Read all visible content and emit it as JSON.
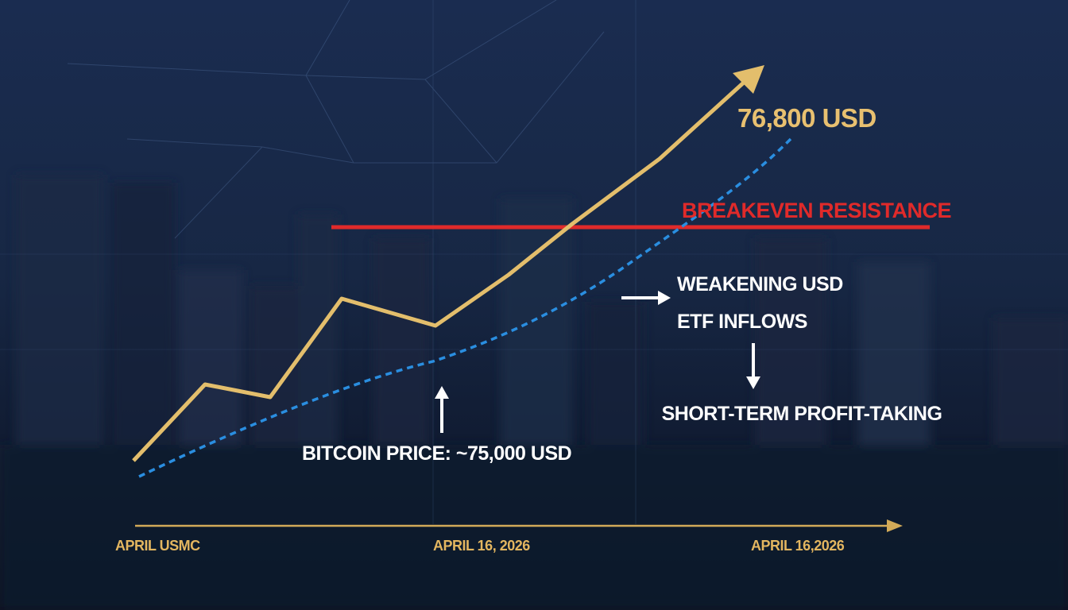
{
  "annotations": {
    "target": "76,800 USD",
    "resistance": "BREAKEVEN RESISTANCE",
    "driver_1": "WEAKENING USD",
    "driver_2": "ETF INFLOWS",
    "outcome": "SHORT-TERM PROFIT-TAKING",
    "price": "BITCOIN PRICE: ~75,000 USD"
  },
  "x_labels": [
    "APRIL USMC",
    "APRIL 16, 2026",
    "APRIL 16,2026"
  ]
}
